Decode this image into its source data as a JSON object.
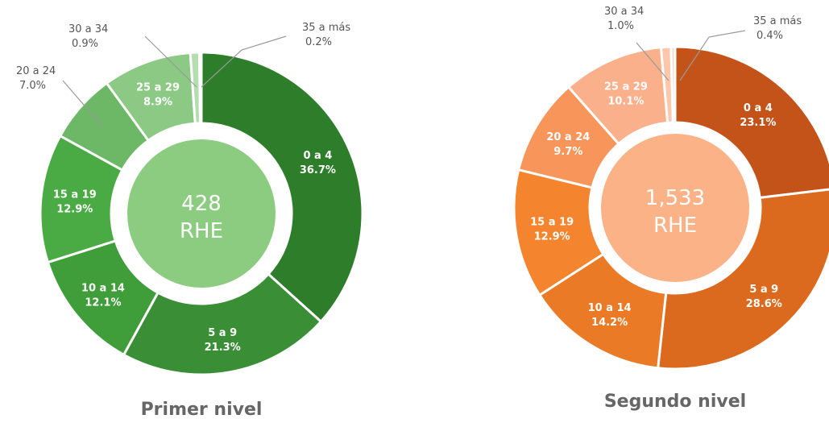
{
  "chart_data": [
    {
      "type": "pie",
      "title": "Primer nivel",
      "center": {
        "value": "428",
        "unit": "RHE"
      },
      "slices": [
        {
          "label": "0 a 4",
          "value": 36.7,
          "display": "36.7%",
          "color": "#2e7d2b"
        },
        {
          "label": "5 a 9",
          "value": 21.3,
          "display": "21.3%",
          "color": "#3a8f36"
        },
        {
          "label": "10 a 14",
          "value": 12.1,
          "display": "12.1%",
          "color": "#3f9d3a"
        },
        {
          "label": "15 a 19",
          "value": 12.9,
          "display": "12.9%",
          "color": "#4aab44"
        },
        {
          "label": "20 a 24",
          "value": 7.0,
          "display": "7.0%",
          "color": "#6cb866"
        },
        {
          "label": "25 a 29",
          "value": 8.9,
          "display": "8.9%",
          "color": "#8cc985"
        },
        {
          "label": "30 a 34",
          "value": 0.9,
          "display": "0.9%",
          "color": "#b6ddb0"
        },
        {
          "label": "35 a más",
          "value": 0.2,
          "display": "0.2%",
          "color": "#d4ebd0"
        }
      ],
      "center_color": "#8ccc80"
    },
    {
      "type": "pie",
      "title": "Segundo nivel",
      "center": {
        "value": "1,533",
        "unit": "RHE"
      },
      "slices": [
        {
          "label": "0 a 4",
          "value": 23.1,
          "display": "23.1%",
          "color": "#c4531a"
        },
        {
          "label": "5 a 9",
          "value": 28.6,
          "display": "28.6%",
          "color": "#dc6a1e"
        },
        {
          "label": "10 a 14",
          "value": 14.2,
          "display": "14.2%",
          "color": "#ea7a25"
        },
        {
          "label": "15 a 19",
          "value": 12.9,
          "display": "12.9%",
          "color": "#f4842d"
        },
        {
          "label": "20 a 24",
          "value": 9.7,
          "display": "9.7%",
          "color": "#f7955a"
        },
        {
          "label": "25 a 29",
          "value": 10.1,
          "display": "10.1%",
          "color": "#fab08a"
        },
        {
          "label": "30 a 34",
          "value": 1.0,
          "display": "1.0%",
          "color": "#fcc7aa"
        },
        {
          "label": "35 a más",
          "value": 0.4,
          "display": "0.4%",
          "color": "#fdd9c4"
        }
      ],
      "center_color": "#fbb287"
    }
  ]
}
